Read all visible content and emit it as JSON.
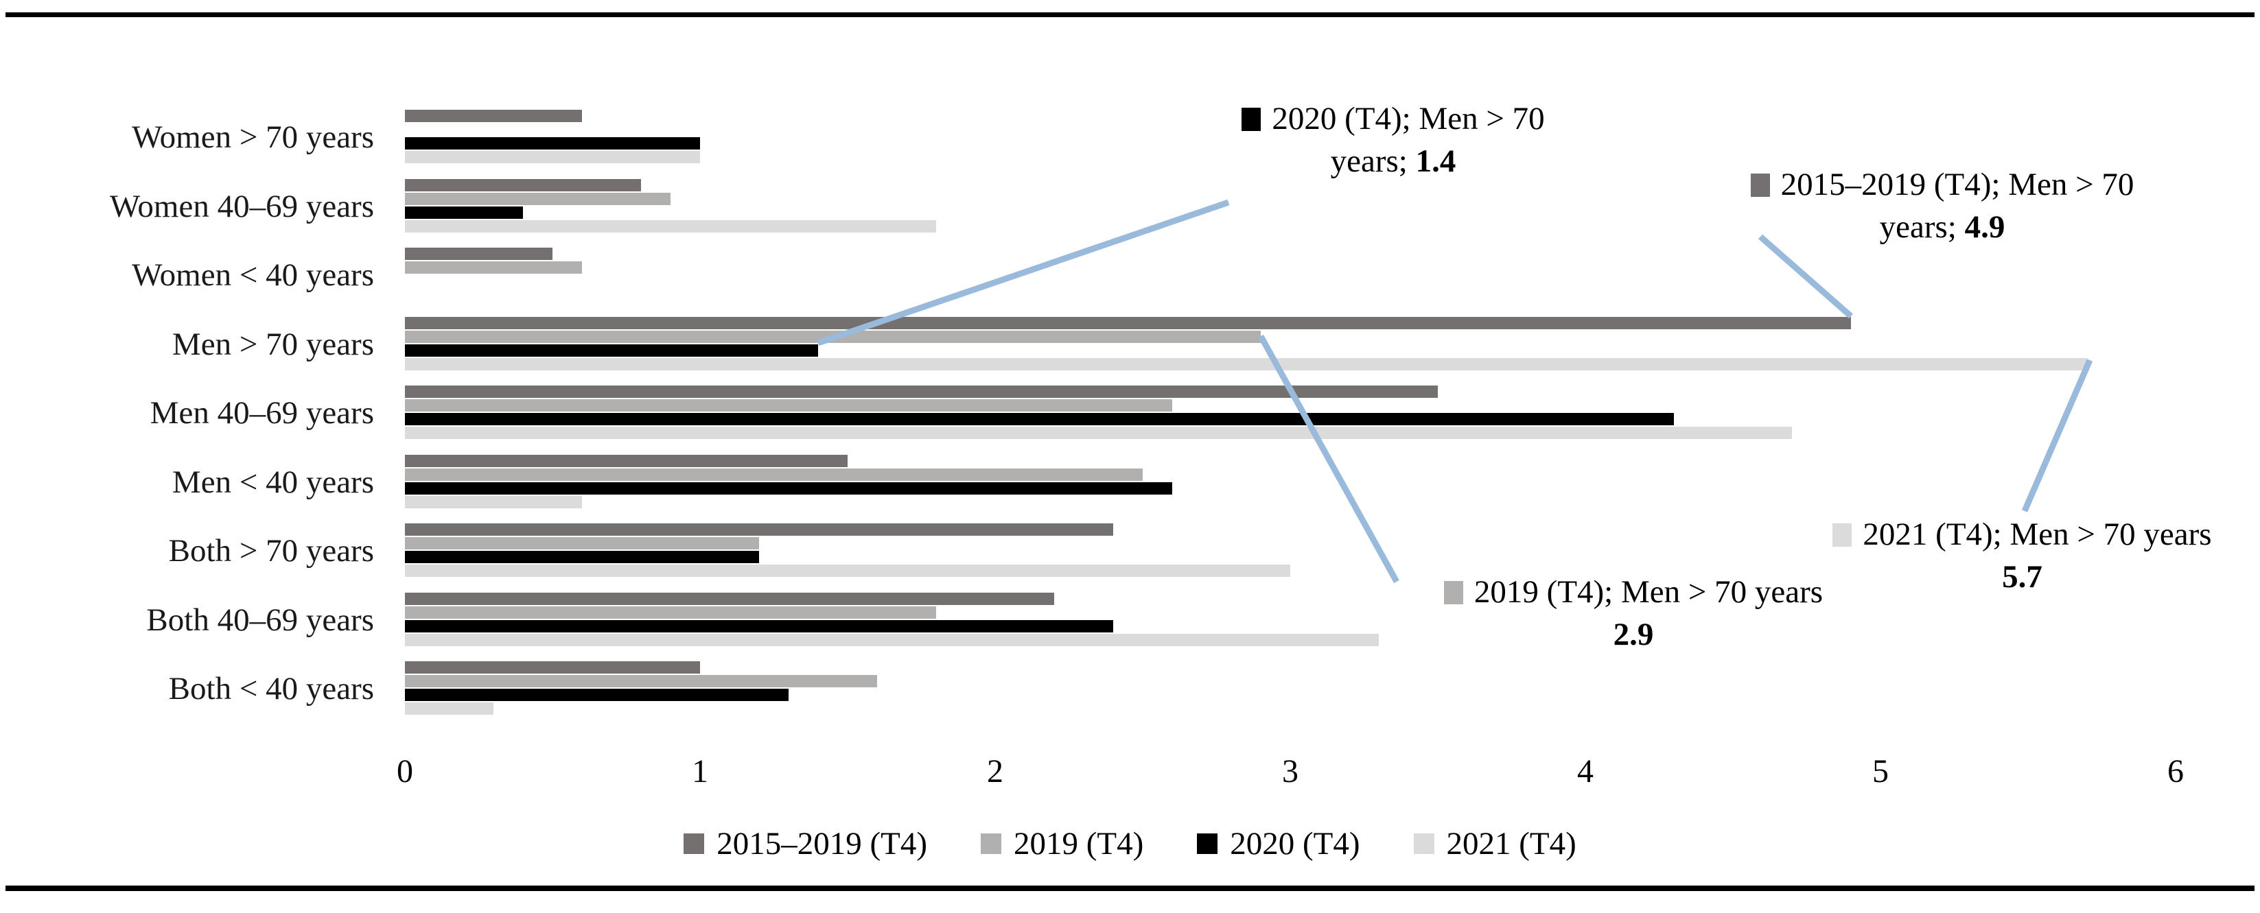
{
  "figure": {
    "description_border": "horizontal black rule at top and bottom of figure"
  },
  "chart_data": {
    "type": "bar",
    "orientation": "horizontal",
    "title": "",
    "xlabel": "",
    "ylabel": "",
    "categories": [
      "Women > 70 years",
      "Women 40–69 years",
      "Women < 40 years",
      "Men > 70 years",
      "Men 40–69 years",
      "Men < 40 years",
      "Both > 70 years",
      "Both 40–69 years",
      "Both < 40 years"
    ],
    "series": [
      {
        "name": "2015–2019 (T4)",
        "color": "#757070",
        "values": [
          0.6,
          0.8,
          0.5,
          4.9,
          3.5,
          1.5,
          2.4,
          2.2,
          1.0
        ]
      },
      {
        "name": "2019 (T4)",
        "color": "#b2afaf",
        "values": [
          null,
          0.9,
          0.6,
          2.9,
          2.6,
          2.5,
          1.2,
          1.8,
          1.6
        ]
      },
      {
        "name": "2020 (T4)",
        "color": "#000000",
        "values": [
          1.0,
          0.4,
          null,
          1.4,
          4.3,
          2.6,
          1.2,
          2.4,
          1.3
        ]
      },
      {
        "name": "2021 (T4)",
        "color": "#dbdbdb",
        "values": [
          1.0,
          1.8,
          null,
          5.7,
          4.7,
          0.6,
          3.0,
          3.3,
          0.3
        ]
      }
    ],
    "x_axis": {
      "min": 0,
      "max": 6,
      "ticks": [
        "0",
        "1",
        "2",
        "3",
        "4",
        "5",
        "6"
      ]
    },
    "grid": false,
    "legend": {
      "position": "bottom",
      "items": [
        {
          "label": "2015–2019 (T4)",
          "color": "#757070"
        },
        {
          "label": "2019 (T4)",
          "color": "#b2afaf"
        },
        {
          "label": "2020 (T4)",
          "color": "#000000"
        },
        {
          "label": "2021 (T4)",
          "color": "#dbdbdb"
        }
      ]
    },
    "annotations": [
      {
        "series": "2020 (T4)",
        "category": "Men > 70 years",
        "value": 1.4,
        "line1": "2020 (T4); Men > 70",
        "line2_prefix": "years; ",
        "value_text": "1.4",
        "marker_color": "#000000"
      },
      {
        "series": "2015–2019 (T4)",
        "category": "Men > 70 years",
        "value": 4.9,
        "line1": "2015–2019 (T4); Men > 70",
        "line2_prefix": "years; ",
        "value_text": "4.9",
        "marker_color": "#757070"
      },
      {
        "series": "2019 (T4)",
        "category": "Men > 70 years",
        "value": 2.9,
        "line1": "2019 (T4); Men > 70 years",
        "line2_prefix": "",
        "value_text": "2.9",
        "marker_color": "#b2afaf"
      },
      {
        "series": "2021 (T4)",
        "category": "Men > 70 years",
        "value": 5.7,
        "line1": "2021 (T4); Men > 70 years",
        "line2_prefix": "",
        "value_text": "5.7",
        "marker_color": "#dbdbdb"
      }
    ],
    "callout_line_color": "#9abadc"
  }
}
